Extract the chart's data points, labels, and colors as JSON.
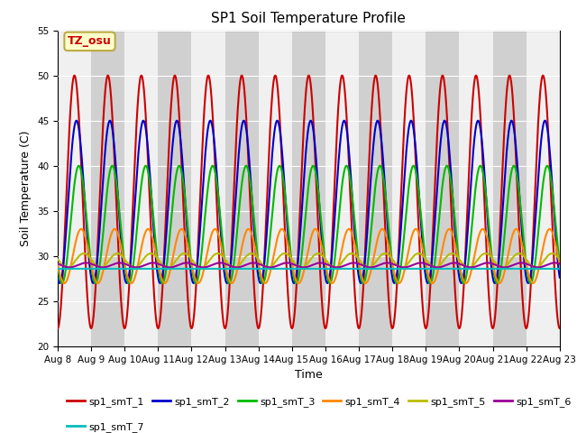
{
  "title": "SP1 Soil Temperature Profile",
  "xlabel": "Time",
  "ylabel": "Soil Temperature (C)",
  "ylim": [
    20,
    55
  ],
  "yticks": [
    20,
    25,
    30,
    35,
    40,
    45,
    50,
    55
  ],
  "xtick_labels": [
    "Aug 8",
    "Aug 9",
    "Aug 10",
    "Aug 11",
    "Aug 12",
    "Aug 13",
    "Aug 14",
    "Aug 15",
    "Aug 16",
    "Aug 17",
    "Aug 18",
    "Aug 19",
    "Aug 20",
    "Aug 21",
    "Aug 22",
    "Aug 23"
  ],
  "tz_label": "TZ_osu",
  "tz_box_facecolor": "#ffffcc",
  "tz_box_edgecolor": "#bbaa44",
  "tz_text_color": "#cc0000",
  "figure_facecolor": "#ffffff",
  "plot_bg_color": "#e8e8e8",
  "band_color": "#d0d0d0",
  "legend_labels": [
    "sp1_smT_1",
    "sp1_smT_2",
    "sp1_smT_3",
    "sp1_smT_4",
    "sp1_smT_5",
    "sp1_smT_6",
    "sp1_smT_7"
  ],
  "line_colors": [
    "#cc0000",
    "#0000cc",
    "#00bb00",
    "#ff8800",
    "#bbbb00",
    "#990099",
    "#00bbbb"
  ],
  "line_width": 1.5,
  "n_days": 15,
  "points_per_day": 96,
  "smT1_base": 36.0,
  "smT1_amp": 14.0,
  "smT1_lag": 0.0,
  "smT2_base": 36.0,
  "smT2_amp": 9.0,
  "smT2_lag": 0.06,
  "smT3_base": 33.5,
  "smT3_amp": 6.5,
  "smT3_lag": 0.13,
  "smT4_base": 30.0,
  "smT4_amp": 3.0,
  "smT4_lag": 0.2,
  "smT5_base": 29.5,
  "smT5_amp": 0.8,
  "smT5_lag": 0.28,
  "smT6_base": 29.0,
  "smT6_amp": 0.25,
  "smT6_lag": 0.35,
  "smT7_base": 28.6,
  "smT7_amp": 0.1,
  "smT7_lag": 0.0
}
